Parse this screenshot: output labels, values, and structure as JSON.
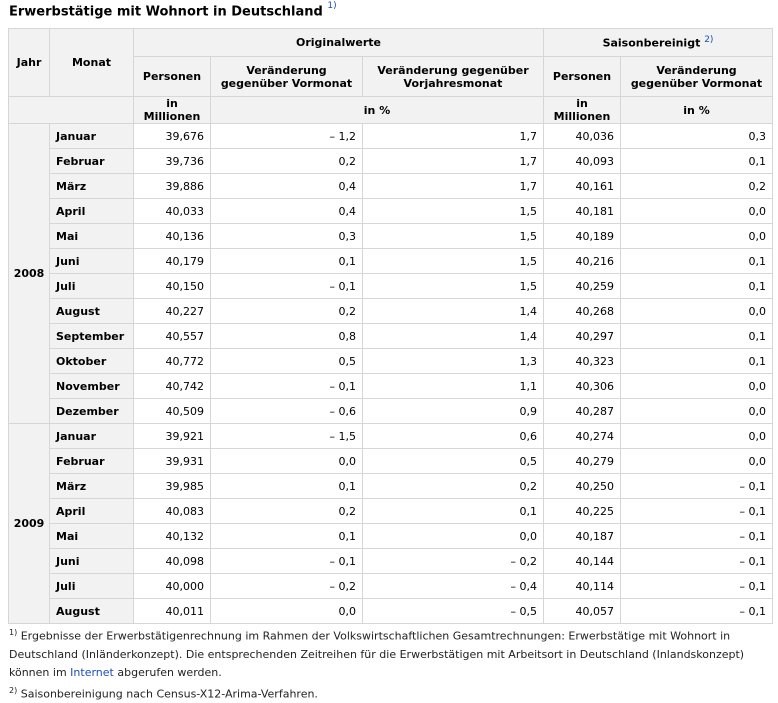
{
  "title": "Erwerbstätige mit Wohnort in Deutschland",
  "title_sup": "1)",
  "headers": {
    "jahr": "Jahr",
    "monat": "Monat",
    "originalwerte": "Originalwerte",
    "saisonbereinigt": "Saisonbereinigt",
    "saisonbereinigt_sup": "2)",
    "personen": "Personen",
    "veraenderung_vormonat": "Veränderung gegenüber Vormonat",
    "veraenderung_vorjahresmonat": "Veränderung gegenüber Vorjahresmonat",
    "personen2": "Personen",
    "veraenderung_vormonat2": "Veränderung gegenüber Vormonat",
    "unit_millionen": "in Millionen",
    "unit_prozent": "in %",
    "unit_millionen2": "in Millionen",
    "unit_prozent2": "in %"
  },
  "years": [
    {
      "year": "2008",
      "rows": [
        [
          "Januar",
          "39,676",
          "– 1,2",
          "1,7",
          "40,036",
          "0,3"
        ],
        [
          "Februar",
          "39,736",
          "0,2",
          "1,7",
          "40,093",
          "0,1"
        ],
        [
          "März",
          "39,886",
          "0,4",
          "1,7",
          "40,161",
          "0,2"
        ],
        [
          "April",
          "40,033",
          "0,4",
          "1,5",
          "40,181",
          "0,0"
        ],
        [
          "Mai",
          "40,136",
          "0,3",
          "1,5",
          "40,189",
          "0,0"
        ],
        [
          "Juni",
          "40,179",
          "0,1",
          "1,5",
          "40,216",
          "0,1"
        ],
        [
          "Juli",
          "40,150",
          "– 0,1",
          "1,5",
          "40,259",
          "0,1"
        ],
        [
          "August",
          "40,227",
          "0,2",
          "1,4",
          "40,268",
          "0,0"
        ],
        [
          "September",
          "40,557",
          "0,8",
          "1,4",
          "40,297",
          "0,1"
        ],
        [
          "Oktober",
          "40,772",
          "0,5",
          "1,3",
          "40,323",
          "0,1"
        ],
        [
          "November",
          "40,742",
          "– 0,1",
          "1,1",
          "40,306",
          "0,0"
        ],
        [
          "Dezember",
          "40,509",
          "– 0,6",
          "0,9",
          "40,287",
          "0,0"
        ]
      ]
    },
    {
      "year": "2009",
      "rows": [
        [
          "Januar",
          "39,921",
          "– 1,5",
          "0,6",
          "40,274",
          "0,0"
        ],
        [
          "Februar",
          "39,931",
          "0,0",
          "0,5",
          "40,279",
          "0,0"
        ],
        [
          "März",
          "39,985",
          "0,1",
          "0,2",
          "40,250",
          "– 0,1"
        ],
        [
          "April",
          "40,083",
          "0,2",
          "0,1",
          "40,225",
          "– 0,1"
        ],
        [
          "Mai",
          "40,132",
          "0,1",
          "0,0",
          "40,187",
          "– 0,1"
        ],
        [
          "Juni",
          "40,098",
          "– 0,1",
          "– 0,2",
          "40,144",
          "– 0,1"
        ],
        [
          "Juli",
          "40,000",
          "– 0,2",
          "– 0,4",
          "40,114",
          "– 0,1"
        ],
        [
          "August",
          "40,011",
          "0,0",
          "– 0,5",
          "40,057",
          "– 0,1"
        ]
      ]
    }
  ],
  "footnotes": {
    "fn1_mark": "1)",
    "fn1_text_before": "Ergebnisse der Erwerbstätigenrechnung im Rahmen der Volkswirtschaftlichen Gesamtrechnungen: Erwerbstätige mit Wohnort in Deutschland (Inländerkonzept). Die entsprechenden Zeitreihen für die Erwerbstätigen mit Arbeitsort in Deutschland (Inlandskonzept) können im",
    "fn1_link": "Internet",
    "fn1_text_after": "abgerufen werden.",
    "fn2_mark": "2)",
    "fn2_text": "Saisonbereinigung nach Census-X12-Arima-Verfahren."
  }
}
